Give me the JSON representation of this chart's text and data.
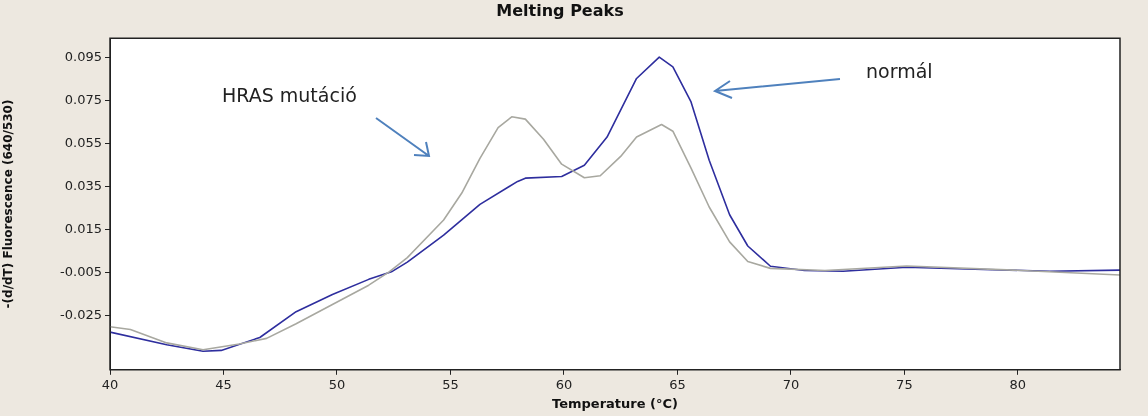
{
  "chart_data": {
    "type": "line",
    "title": "Melting Peaks",
    "xlabel": "Temperature (°C)",
    "ylabel": "-(d/dT) Fluorescence (640/530)",
    "xlim": [
      40,
      84.5
    ],
    "xticks": [
      40,
      45,
      50,
      55,
      60,
      65,
      70,
      75,
      80
    ],
    "ylim": [
      -0.05,
      0.104
    ],
    "yticks": [
      -0.025,
      -0.005,
      0.015,
      0.035,
      0.055,
      0.075,
      0.095
    ],
    "annotations": [
      "HRAS mutáció",
      "normál"
    ],
    "grid": false,
    "legend": false,
    "marker": "none",
    "line_style": "solid",
    "series": [
      {
        "color": "#a8a8a0",
        "x": [
          40,
          40.9,
          42.5,
          44.1,
          45.7,
          46.9,
          48.2,
          49.8,
          51.4,
          52.3,
          53.1,
          54.7,
          55.5,
          56.3,
          57.1,
          57.7,
          58.3,
          59.1,
          59.9,
          60.9,
          61.6,
          62.5,
          63.2,
          64.3,
          64.8,
          65.6,
          66.4,
          67.3,
          68.1,
          69.1,
          71.5,
          75.1,
          79.8,
          84.5
        ],
        "values": [
          -0.03,
          -0.0313,
          -0.0375,
          -0.0407,
          -0.038,
          -0.0354,
          -0.0286,
          -0.0197,
          -0.0107,
          -0.0045,
          0.0021,
          0.0196,
          0.0321,
          0.0482,
          0.0625,
          0.0675,
          0.0664,
          0.0571,
          0.0455,
          0.0392,
          0.0401,
          0.0491,
          0.0581,
          0.0639,
          0.0608,
          0.0437,
          0.0256,
          0.0094,
          0.0003,
          -0.0029,
          -0.0039,
          -0.0018,
          -0.0037,
          -0.006
        ]
      },
      {
        "color": "#2e2e9e",
        "x": [
          40,
          42.5,
          44.1,
          44.9,
          46.6,
          48.2,
          49.8,
          51.4,
          52.4,
          53.1,
          54.7,
          56.3,
          57.96,
          58.3,
          59.9,
          60.9,
          61.9,
          63.2,
          64.2,
          64.8,
          65.6,
          66.4,
          67.3,
          68.1,
          69.1,
          70.6,
          72.3,
          75.1,
          78.1,
          81.4,
          84.5
        ],
        "values": [
          -0.0325,
          -0.0384,
          -0.0414,
          -0.041,
          -0.035,
          -0.023,
          -0.015,
          -0.008,
          -0.0045,
          0,
          0.0125,
          0.0268,
          0.0375,
          0.039,
          0.0398,
          0.045,
          0.0581,
          0.0853,
          0.0952,
          0.0907,
          0.0744,
          0.0473,
          0.022,
          0.0075,
          -0.0019,
          -0.0039,
          -0.0042,
          -0.0024,
          -0.0033,
          -0.0042,
          -0.0037
        ]
      }
    ]
  }
}
